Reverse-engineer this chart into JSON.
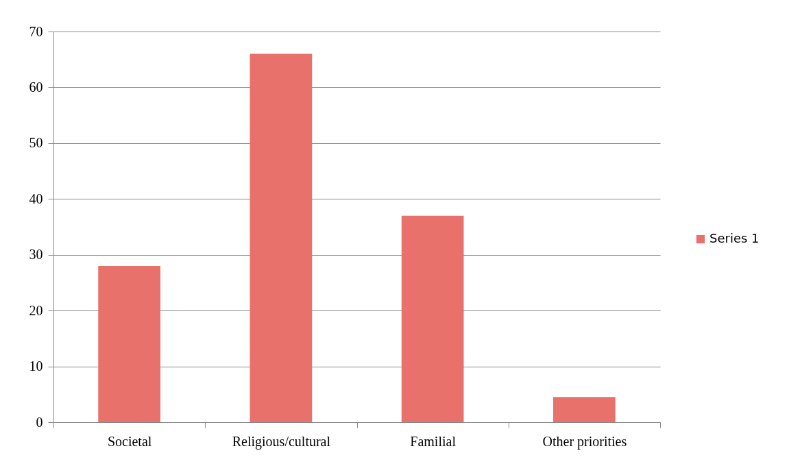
{
  "chart_data": {
    "type": "bar",
    "categories": [
      "Societal",
      "Religious/cultural",
      "Familial",
      "Other priorities"
    ],
    "series": [
      {
        "name": "Series 1",
        "color": "#e8716b",
        "values": [
          28,
          66,
          37,
          4.5
        ]
      }
    ],
    "ylim": [
      0,
      70
    ],
    "yticks": [
      0,
      10,
      20,
      30,
      40,
      50,
      60,
      70
    ],
    "grid": "y",
    "legend": "right"
  }
}
